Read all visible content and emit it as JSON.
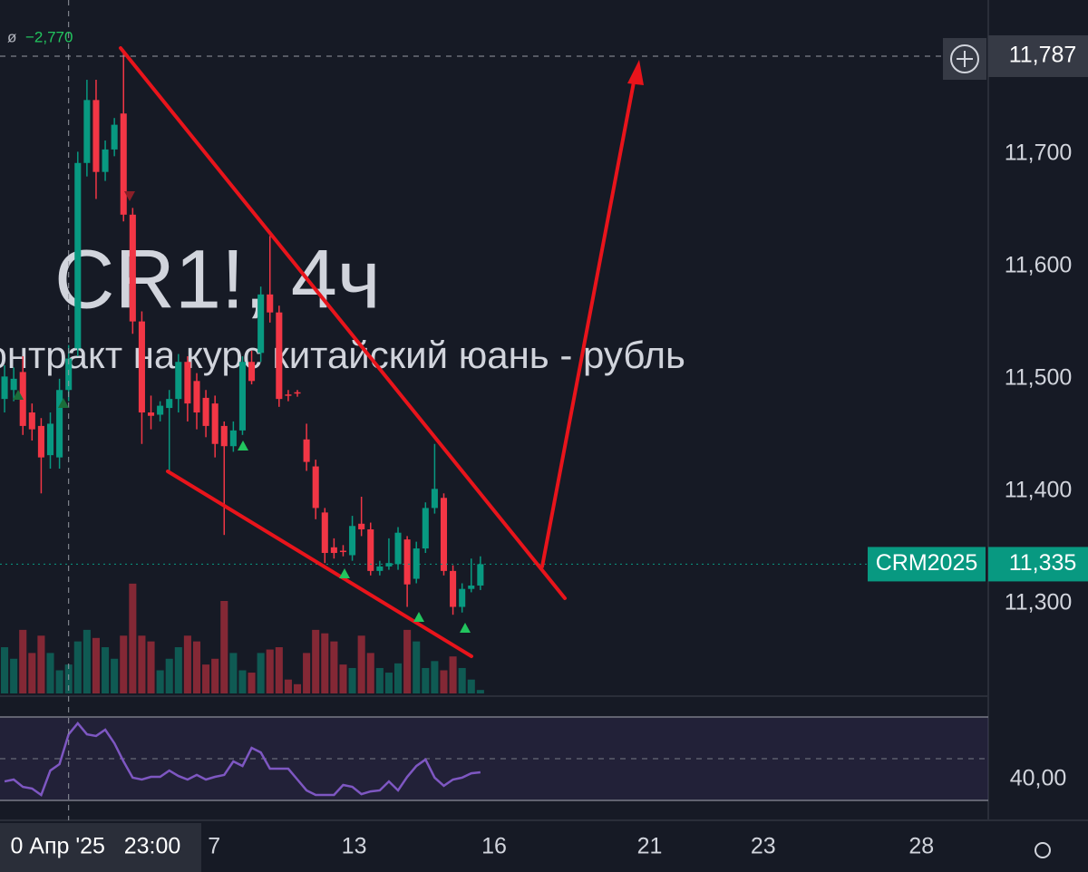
{
  "chart_data": {
    "type": "candlestick",
    "watermark_title": "CR1!, 4ч",
    "watermark_subtitle": "Контракт на курс китайский юань - рубль",
    "legend_symbol": "ø",
    "change_label": "−2,770",
    "up_color": "#089981",
    "down_color": "#f23645",
    "grid": false,
    "xlim": [
      -0.5,
      107.5
    ],
    "xticks": [
      {
        "value": 22.9,
        "label": "7"
      },
      {
        "value": 38.2,
        "label": "13"
      },
      {
        "value": 53.5,
        "label": "16"
      },
      {
        "value": 70.5,
        "label": "21"
      },
      {
        "value": 82.9,
        "label": "23"
      },
      {
        "value": 100.2,
        "label": "28"
      }
    ],
    "ylim": [
      11220,
      11837
    ],
    "yticks": [
      {
        "value": 11300,
        "label": "11,300"
      },
      {
        "value": 11400,
        "label": "11,400"
      },
      {
        "value": 11500,
        "label": "11,500"
      },
      {
        "value": 11600,
        "label": "11,600"
      },
      {
        "value": 11700,
        "label": "11,700"
      }
    ],
    "crosshair": {
      "index": 7,
      "date_label": "0 Апр '25",
      "time_label": "23:00",
      "price": {
        "value": 11787,
        "label": "11,787"
      }
    },
    "last_price": {
      "symbol": "CRM2025",
      "value": 11335,
      "label": "11,335"
    },
    "open": [
      11482,
      11490,
      11506,
      11470,
      11458,
      11432,
      11430,
      11490,
      11527,
      11692,
      11748,
      11684,
      11704,
      11736,
      11646,
      11551,
      11470,
      11468,
      11474,
      11482,
      11515,
      11498,
      11483,
      11478,
      11458,
      11440,
      11454,
      11515,
      11523,
      11575,
      11559,
      11486,
      11488,
      11446,
      11422,
      11381,
      11350,
      11347,
      11343,
      11371,
      11366,
      11329,
      11333,
      11335,
      11357,
      11322,
      11349,
      11385,
      11394,
      11329,
      11297,
      11313,
      11316
    ],
    "high": [
      11512,
      11510,
      11520,
      11478,
      11465,
      11470,
      11500,
      11530,
      11702,
      11766,
      11766,
      11712,
      11732,
      11793,
      11652,
      11560,
      11485,
      11480,
      11490,
      11522,
      11520,
      11505,
      11490,
      11485,
      11462,
      11462,
      11520,
      11525,
      11582,
      11627,
      11565,
      11490,
      11490,
      11460,
      11428,
      11385,
      11358,
      11352,
      11378,
      11395,
      11372,
      11338,
      11358,
      11368,
      11360,
      11355,
      11390,
      11442,
      11398,
      11334,
      11318,
      11340,
      11342
    ],
    "low": [
      11470,
      11480,
      11450,
      11445,
      11398,
      11420,
      11420,
      11480,
      11520,
      11680,
      11660,
      11676,
      11698,
      11640,
      11540,
      11442,
      11455,
      11462,
      11418,
      11470,
      11462,
      11455,
      11448,
      11430,
      11361,
      11435,
      11450,
      11495,
      11515,
      11550,
      11475,
      11480,
      11484,
      11418,
      11375,
      11336,
      11340,
      11342,
      11338,
      11360,
      11325,
      11325,
      11330,
      11330,
      11297,
      11318,
      11345,
      11380,
      11325,
      11290,
      11292,
      11310,
      11312
    ],
    "close": [
      11502,
      11500,
      11458,
      11455,
      11430,
      11460,
      11490,
      11518,
      11692,
      11748,
      11684,
      11704,
      11726,
      11646,
      11551,
      11470,
      11467,
      11476,
      11482,
      11515,
      11478,
      11470,
      11458,
      11442,
      11440,
      11454,
      11515,
      11498,
      11575,
      11559,
      11482,
      11485,
      11487,
      11426,
      11385,
      11345,
      11345,
      11346,
      11369,
      11366,
      11329,
      11333,
      11336,
      11363,
      11317,
      11349,
      11385,
      11402,
      11329,
      11297,
      11313,
      11316,
      11335
    ],
    "volume": [
      40,
      30,
      55,
      35,
      50,
      35,
      20,
      25,
      45,
      55,
      48,
      40,
      30,
      50,
      95,
      50,
      45,
      20,
      30,
      40,
      50,
      45,
      25,
      30,
      80,
      35,
      20,
      18,
      35,
      38,
      40,
      12,
      8,
      35,
      55,
      52,
      45,
      25,
      22,
      50,
      35,
      22,
      18,
      26,
      55,
      45,
      22,
      28,
      20,
      32,
      22,
      12,
      3
    ],
    "volume_ylim": [
      0,
      600
    ],
    "rsi": {
      "color": "#7e57c2",
      "ylim": [
        30,
        70
      ],
      "band": [
        30,
        70
      ],
      "midline": 50,
      "yticks": [
        {
          "value": 40,
          "label": "40,00"
        }
      ],
      "values": [
        39.1,
        40,
        36.5,
        35.7,
        32.6,
        44.3,
        47.4,
        61.7,
        67,
        61.7,
        60.9,
        63.9,
        57.4,
        48.7,
        40.9,
        40,
        41.3,
        41.3,
        44.3,
        41.7,
        40,
        42.2,
        40,
        41.3,
        42.2,
        48.7,
        46.5,
        55.2,
        53,
        45.2,
        45.2,
        45.2,
        40,
        34.8,
        32.6,
        32.6,
        32.6,
        37.4,
        36.5,
        33,
        34.3,
        34.8,
        39.1,
        34.8,
        41.3,
        46.5,
        49.6,
        40.9,
        37,
        40,
        40.9,
        43,
        43.5
      ]
    }
  }
}
